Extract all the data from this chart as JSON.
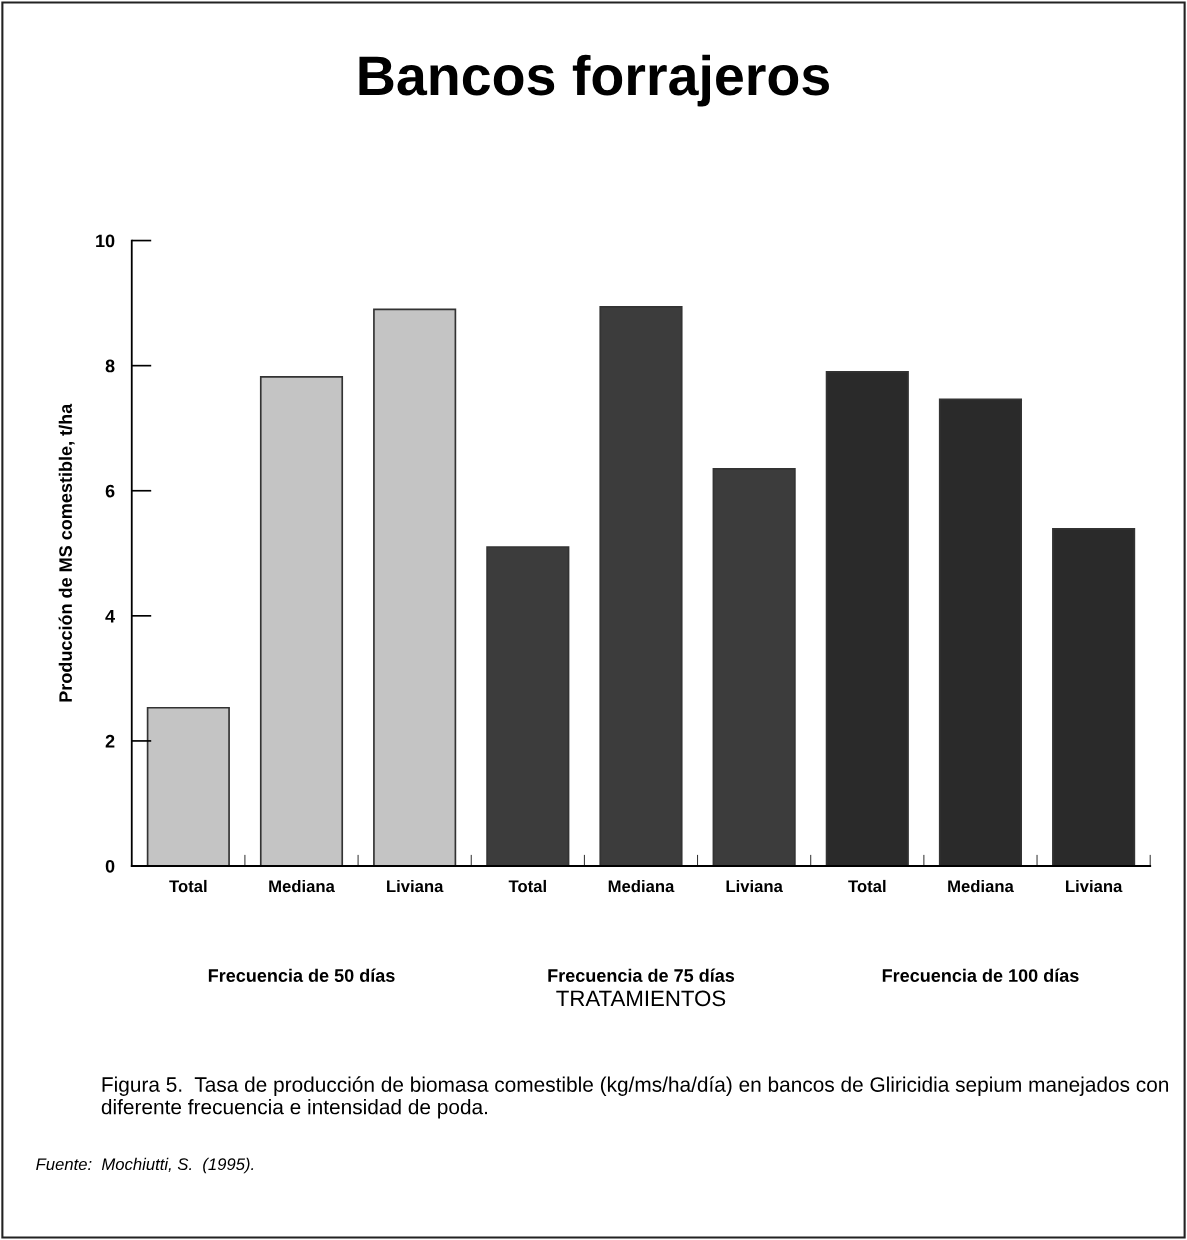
{
  "chart_data": {
    "type": "bar",
    "title": "Bancos forrajeros",
    "categories": [
      "Total",
      "Mediana",
      "Liviana",
      "Total",
      "Mediana",
      "Liviana",
      "Total",
      "Mediana",
      "Liviana"
    ],
    "values": [
      2.53,
      7.82,
      8.9,
      5.1,
      8.94,
      6.35,
      7.9,
      7.46,
      5.39
    ],
    "colors": [
      "#c4c4c4",
      "#c4c4c4",
      "#c4c4c4",
      "#3c3c3c",
      "#3c3c3c",
      "#3c3c3c",
      "#2a2a2a",
      "#2a2a2a",
      "#2a2a2a"
    ],
    "xlabel": "TRATAMIENTOS",
    "ylabel": "Producción de MS comestible, t/ha",
    "ylim": [
      0,
      10
    ],
    "yticks": [
      0,
      2,
      4,
      6,
      8,
      10
    ],
    "grid": false,
    "annotations": [
      "Frecuencia de 50 días",
      "Frecuencia de 75 días",
      "Frecuencia de 100 días",
      "Figura 5.  Tasa de producción de biomasa comestible (kg/ms/ha/día) en bancos de Gliricidia sepium manejados con diferente frecuencia e intensidad de poda.",
      "Fuente:  Mochiutti, S.  (1995)."
    ]
  }
}
